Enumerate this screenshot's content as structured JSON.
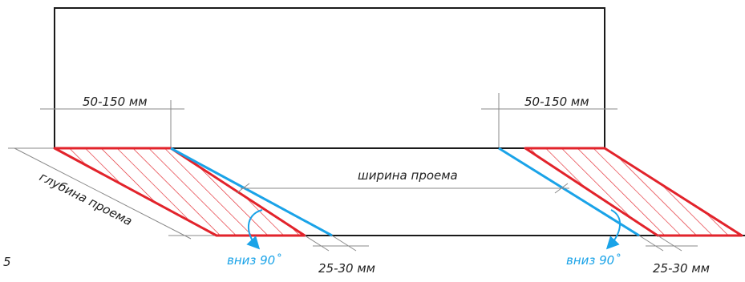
{
  "colors": {
    "outline": "#1a1a1a",
    "dimension": "#8a8a8a",
    "red": "#e2232b",
    "blue": "#1aa3e8"
  },
  "labels": {
    "left_offset": "50-150 мм",
    "right_offset": "50-150 мм",
    "opening_width": "ширина проема",
    "opening_depth": "глубина проема",
    "left_fold": "вниз 90˚",
    "right_fold": "вниз 90˚",
    "left_gap": "25-30 мм",
    "right_gap": "25-30 мм",
    "figure_number": "5"
  }
}
